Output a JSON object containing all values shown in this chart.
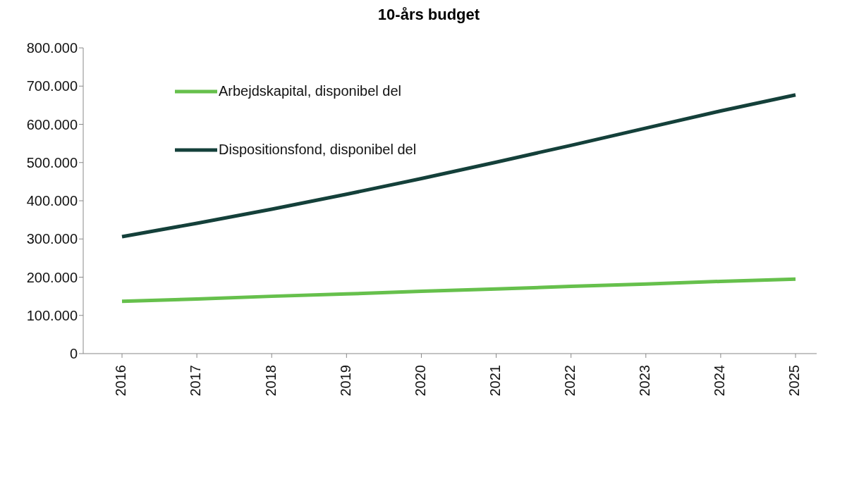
{
  "chart_data": {
    "type": "line",
    "title": "10-års budget",
    "categories": [
      "2016",
      "2017",
      "2018",
      "2019",
      "2020",
      "2021",
      "2022",
      "2023",
      "2024",
      "2025"
    ],
    "series": [
      {
        "name": "Arbejdskapital, disponibel del",
        "color": "#66c04c",
        "values": [
          137000,
          143000,
          150000,
          156000,
          163000,
          169000,
          176000,
          182000,
          189000,
          195000
        ]
      },
      {
        "name": "Dispositionsfond, disponibel del",
        "color": "#14403a",
        "values": [
          306000,
          341000,
          378000,
          417000,
          458000,
          501000,
          545000,
          590000,
          635000,
          677000
        ]
      }
    ],
    "ylim": [
      0,
      800000
    ],
    "yticks": [
      0,
      {
        "value": 100000,
        "label": "100.000"
      },
      {
        "value": 200000,
        "label": "200.000"
      },
      {
        "value": 300000,
        "label": "300.000"
      },
      {
        "value": 400000,
        "label": "400.000"
      },
      {
        "value": 500000,
        "label": "500.000"
      },
      {
        "value": 600000,
        "label": "600.000"
      },
      {
        "value": 700000,
        "label": "700.000"
      },
      {
        "value": 800000,
        "label": "800.000"
      }
    ],
    "grid": false,
    "legend": "top left",
    "marker": "none",
    "line_style": "solid"
  }
}
